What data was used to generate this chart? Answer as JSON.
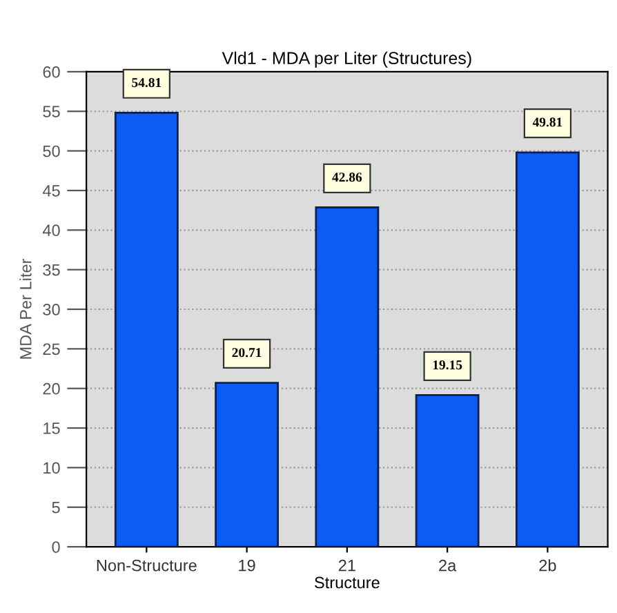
{
  "chart_data": {
    "type": "bar",
    "title": "Vld1 - MDA per Liter (Structures)",
    "xlabel": "Structure",
    "ylabel": "MDA Per Liter",
    "categories": [
      "Non-Structure",
      "19",
      "21",
      "2a",
      "2b"
    ],
    "values": [
      54.81,
      20.71,
      42.86,
      19.15,
      49.81
    ],
    "color": "#0a5cf5",
    "ylim": [
      0,
      60
    ],
    "yticks": [
      0,
      5,
      10,
      15,
      20,
      25,
      30,
      35,
      40,
      45,
      50,
      55,
      60
    ],
    "grid": "y",
    "data_labels": true
  }
}
